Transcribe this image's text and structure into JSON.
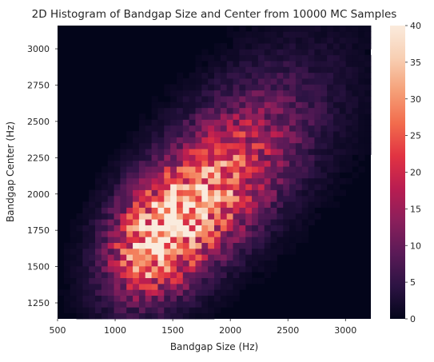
{
  "chart_data": {
    "type": "heatmap",
    "title": "2D Histogram of Bandgap Size and Center from 10000 MC Samples",
    "xlabel": "Bandgap Size (Hz)",
    "ylabel": "Bandgap Center (Hz)",
    "xlim": [
      500,
      3220
    ],
    "ylim": [
      1140,
      3160
    ],
    "x_ticks": [
      500,
      1000,
      1500,
      2000,
      2500,
      3000
    ],
    "y_ticks": [
      1250,
      1500,
      1750,
      2000,
      2250,
      2500,
      2750,
      3000
    ],
    "bins": [
      50,
      50
    ],
    "samples": 10000,
    "density": {
      "ridge": {
        "x0": 900,
        "y0": 1320,
        "x1": 2700,
        "y1": 2720
      },
      "peak": {
        "x": 1330,
        "y": 1800
      },
      "peak_count": 40,
      "cross_width_hz": 290
    },
    "colorbar": {
      "min": 0,
      "max": 40,
      "ticks": [
        0,
        5,
        10,
        15,
        20,
        25,
        30,
        35,
        40
      ],
      "colormap": "rocket",
      "colors": [
        "#03051a",
        "#2c1343",
        "#5a1a57",
        "#8a1f5b",
        "#b91d51",
        "#e13342",
        "#f26c4d",
        "#f5a078",
        "#f8cfb3",
        "#faebdd"
      ]
    },
    "background": "#03051a",
    "grid": false
  }
}
